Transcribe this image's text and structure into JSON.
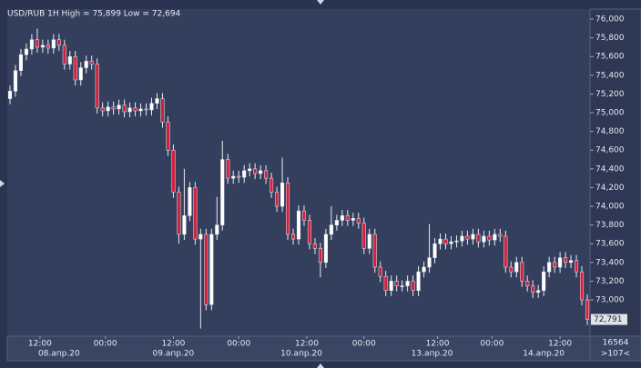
{
  "chart_data": {
    "type": "candlestick",
    "title": "USD/RUB 1H High = 75,899 Low = 72,694",
    "up_color": "#ffffff",
    "down_color": "#d2203c",
    "open": [
      75150,
      75230,
      75450,
      75620,
      75680,
      75780,
      75700,
      75720,
      75690,
      75780,
      75720,
      75520,
      75600,
      75350,
      75480,
      75550,
      75520,
      75050,
      75020,
      75060,
      75040,
      75080,
      75010,
      75050,
      75020,
      75040,
      75030,
      75100,
      75150,
      74900,
      74600,
      74150,
      73700,
      73900,
      74200,
      73650,
      73700,
      72950,
      73700,
      73800,
      74500,
      74300,
      74320,
      74310,
      74380,
      74400,
      74350,
      74380,
      74300,
      74150,
      74000,
      74250,
      73700,
      73650,
      73950,
      73850,
      73600,
      73550,
      73400,
      73700,
      73800,
      73850,
      73900,
      73850,
      73870,
      73820,
      73550,
      73700,
      73350,
      73250,
      73100,
      73200,
      73150,
      73150,
      73200,
      73100,
      73300,
      73350,
      73450,
      73600,
      73650,
      73600,
      73620,
      73630,
      73680,
      73650,
      73700,
      73620,
      73680,
      73640,
      73700,
      73680,
      73350,
      73300,
      73400,
      73200,
      73150,
      73080,
      73100,
      73300,
      73400,
      73350,
      73450,
      73400,
      73420,
      73300,
      73000
    ],
    "high": [
      75290,
      75510,
      75680,
      75740,
      75840,
      75899,
      75780,
      75780,
      75840,
      75840,
      75780,
      75660,
      75660,
      75540,
      75610,
      75610,
      75580,
      75110,
      75120,
      75120,
      75140,
      75140,
      75110,
      75110,
      75100,
      75100,
      75160,
      75210,
      75210,
      74960,
      74660,
      74210,
      74400,
      74260,
      74260,
      73760,
      73760,
      73760,
      74100,
      74700,
      74560,
      74380,
      74380,
      74440,
      74460,
      74460,
      74440,
      74440,
      74360,
      74210,
      74520,
      74310,
      73760,
      74010,
      74010,
      73910,
      73660,
      73610,
      73760,
      74000,
      73910,
      73960,
      73960,
      73930,
      73930,
      73880,
      73760,
      73760,
      73410,
      73310,
      73260,
      73260,
      73210,
      73260,
      73260,
      73360,
      73410,
      73810,
      73660,
      73710,
      73710,
      73680,
      73690,
      73740,
      73740,
      73760,
      73760,
      73740,
      73740,
      73760,
      73760,
      73740,
      73410,
      73460,
      73460,
      73260,
      73210,
      73160,
      73360,
      73460,
      73460,
      73510,
      73510,
      73480,
      73480,
      73360,
      73060
    ],
    "low": [
      75090,
      75170,
      75390,
      75560,
      75620,
      75640,
      75640,
      75630,
      75630,
      75660,
      75460,
      75460,
      75290,
      75290,
      75420,
      75460,
      74990,
      74960,
      74960,
      74980,
      74980,
      74950,
      74950,
      74960,
      74960,
      74970,
      74970,
      75040,
      74840,
      74540,
      74090,
      73600,
      73640,
      73840,
      73590,
      72694,
      72890,
      72890,
      73640,
      73740,
      74240,
      74240,
      74250,
      74250,
      74320,
      74290,
      74290,
      74240,
      74090,
      73940,
      73940,
      73640,
      73590,
      73590,
      73790,
      73540,
      73490,
      73240,
      73340,
      73640,
      73740,
      73790,
      73790,
      73790,
      73760,
      73490,
      73490,
      73290,
      73190,
      73040,
      73040,
      73090,
      73090,
      73090,
      73040,
      73040,
      73240,
      73290,
      73390,
      73540,
      73540,
      73540,
      73560,
      73570,
      73590,
      73590,
      73560,
      73560,
      73580,
      73580,
      73620,
      73290,
      73240,
      73240,
      73140,
      73090,
      73020,
      73020,
      73040,
      73240,
      73290,
      73290,
      73340,
      73340,
      73240,
      72940,
      72731
    ],
    "close": [
      75230,
      75450,
      75620,
      75680,
      75780,
      75700,
      75720,
      75690,
      75780,
      75720,
      75520,
      75600,
      75350,
      75480,
      75550,
      75520,
      75050,
      75020,
      75060,
      75040,
      75080,
      75010,
      75050,
      75020,
      75040,
      75030,
      75100,
      75150,
      74900,
      74600,
      74150,
      73700,
      73900,
      74200,
      73650,
      73700,
      72950,
      73700,
      73800,
      74500,
      74300,
      74320,
      74310,
      74380,
      74400,
      74350,
      74380,
      74300,
      74150,
      74000,
      74250,
      73700,
      73650,
      73950,
      73850,
      73600,
      73550,
      73400,
      73700,
      73800,
      73850,
      73900,
      73850,
      73870,
      73820,
      73550,
      73700,
      73350,
      73250,
      73100,
      73200,
      73150,
      73150,
      73200,
      73100,
      73300,
      73350,
      73450,
      73600,
      73650,
      73600,
      73620,
      73630,
      73680,
      73650,
      73700,
      73620,
      73680,
      73640,
      73700,
      73680,
      73350,
      73300,
      73400,
      73200,
      73150,
      73080,
      73100,
      73300,
      73400,
      73350,
      73450,
      73400,
      73420,
      73300,
      73000,
      72791
    ],
    "last_label": {
      "value": 72791,
      "label": "72,791"
    },
    "xlim": [
      -0.5,
      106.5
    ],
    "ylim": [
      72612,
      76107
    ],
    "yticks": [
      {
        "value": 73000,
        "label": "73,000"
      },
      {
        "value": 73200,
        "label": "73,200"
      },
      {
        "value": 73400,
        "label": "73,400"
      },
      {
        "value": 73600,
        "label": "73,600"
      },
      {
        "value": 73800,
        "label": "73,800"
      },
      {
        "value": 74000,
        "label": "74,000"
      },
      {
        "value": 74200,
        "label": "74,200"
      },
      {
        "value": 74400,
        "label": "74,400"
      },
      {
        "value": 74600,
        "label": "74,600"
      },
      {
        "value": 74800,
        "label": "74,800"
      },
      {
        "value": 75000,
        "label": "75,000"
      },
      {
        "value": 75200,
        "label": "75,200"
      },
      {
        "value": 75400,
        "label": "75,400"
      },
      {
        "value": 75600,
        "label": "75,600"
      },
      {
        "value": 75800,
        "label": "75,800"
      },
      {
        "value": 76000,
        "label": "76,000"
      }
    ],
    "xticks": [
      {
        "value": 5.5,
        "label": "12:00"
      },
      {
        "value": 17.5,
        "label": "00:00"
      },
      {
        "value": 30,
        "label": "12:00"
      },
      {
        "value": 42,
        "label": "00:00"
      },
      {
        "value": 54.5,
        "label": "12:00"
      },
      {
        "value": 65,
        "label": "00:00"
      },
      {
        "value": 78.5,
        "label": "12:00"
      },
      {
        "value": 88.5,
        "label": "00:00"
      },
      {
        "value": 101,
        "label": "12:00"
      }
    ],
    "date_ticks": [
      {
        "value": 9,
        "label": "08.апр.20"
      },
      {
        "value": 30,
        "label": "09.апр.20"
      },
      {
        "value": 53.5,
        "label": "10.апр.20"
      },
      {
        "value": 77.5,
        "label": "13.апр.20"
      },
      {
        "value": 98,
        "label": "14.апр.20"
      }
    ],
    "footer_texts": [
      "16564",
      ">107<"
    ]
  }
}
